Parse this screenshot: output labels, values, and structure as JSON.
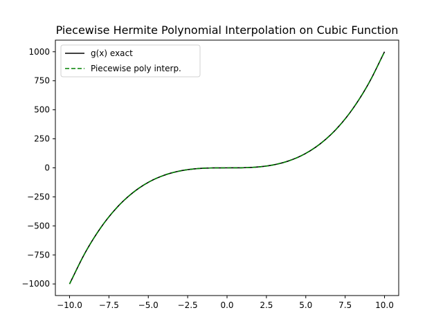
{
  "chart_data": {
    "type": "line",
    "title": "Piecewise Hermite Polynomial Interpolation on Cubic Function",
    "xlabel": "",
    "ylabel": "",
    "xlim": [
      -10.9,
      10.9
    ],
    "ylim": [
      -1100,
      1100
    ],
    "x_ticks": [
      -10.0,
      -7.5,
      -5.0,
      -2.5,
      0.0,
      2.5,
      5.0,
      7.5,
      10.0
    ],
    "x_tick_labels": [
      "−10.0",
      "−7.5",
      "−5.0",
      "−2.5",
      "0.0",
      "2.5",
      "5.0",
      "7.5",
      "10.0"
    ],
    "y_ticks": [
      -1000,
      -750,
      -500,
      -250,
      0,
      250,
      500,
      750,
      1000
    ],
    "y_tick_labels": [
      "−1000",
      "−750",
      "−500",
      "−250",
      "0",
      "250",
      "500",
      "750",
      "1000"
    ],
    "grid": false,
    "legend_position": "top-left",
    "x": [
      -10,
      -9,
      -8,
      -7,
      -6,
      -5,
      -4,
      -3,
      -2,
      -1,
      0,
      1,
      2,
      3,
      4,
      5,
      6,
      7,
      8,
      9,
      10
    ],
    "series": [
      {
        "name": "g(x) exact",
        "color": "#000000",
        "style": "solid",
        "values": [
          -1000,
          -729,
          -512,
          -343,
          -216,
          -125,
          -64,
          -27,
          -8,
          -1,
          0,
          1,
          8,
          27,
          64,
          125,
          216,
          343,
          512,
          729,
          1000
        ]
      },
      {
        "name": "Piecewise poly interp.",
        "color": "#008000",
        "style": "dashed",
        "values": [
          -1000,
          -729,
          -512,
          -343,
          -216,
          -125,
          -64,
          -27,
          -8,
          -1,
          0,
          1,
          8,
          27,
          64,
          125,
          216,
          343,
          512,
          729,
          1000
        ]
      }
    ]
  }
}
